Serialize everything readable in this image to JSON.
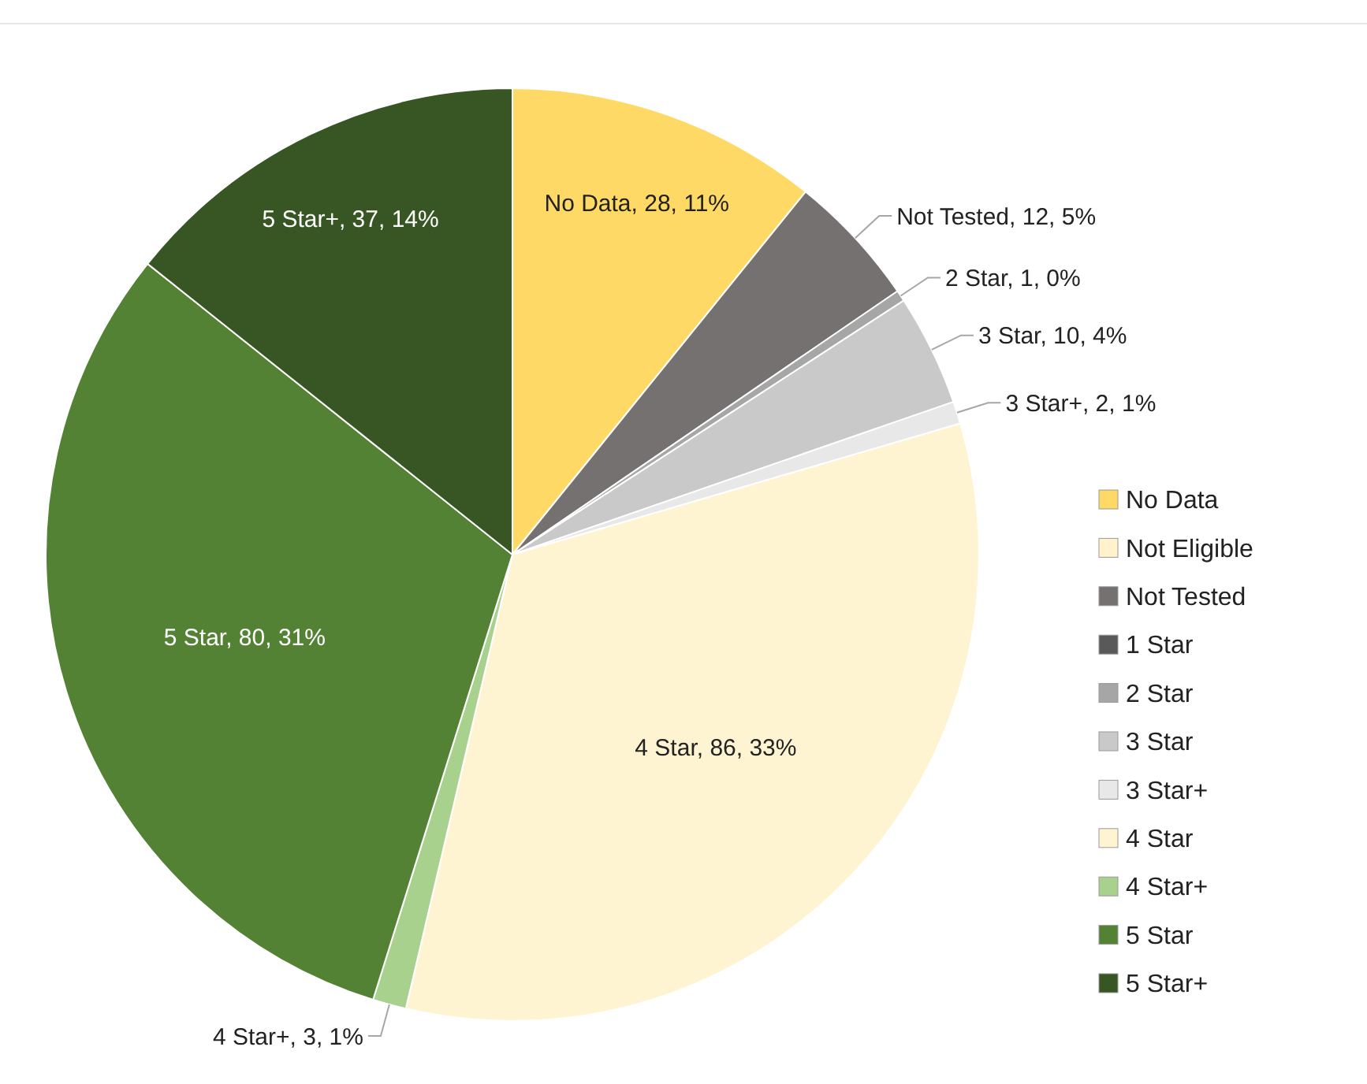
{
  "chart_data": {
    "type": "pie",
    "categories": [
      "No Data",
      "Not Eligible",
      "Not Tested",
      "1 Star",
      "2 Star",
      "3 Star",
      "3 Star+",
      "4 Star",
      "4 Star+",
      "5 Star",
      "5 Star+"
    ],
    "values": [
      28,
      0,
      12,
      0,
      1,
      10,
      2,
      86,
      3,
      80,
      37
    ],
    "colors": [
      "#ffd966",
      "#fff2cc",
      "#767171",
      "#595959",
      "#a6a6a6",
      "#c9c9c9",
      "#e8e8e8",
      "#fff4d2",
      "#a9d18e",
      "#548235",
      "#375623"
    ],
    "value_labels": [
      "No Data, 28, 11%",
      null,
      "Not Tested, 12, 5%",
      null,
      "2 Star, 1, 0%",
      "3 Star, 10, 4%",
      "3 Star+, 2, 1%",
      "4 Star, 86, 33%",
      "4 Star+, 3, 1%",
      "5 Star, 80, 31%",
      "5 Star+, 37, 14%"
    ],
    "legend": "right"
  }
}
